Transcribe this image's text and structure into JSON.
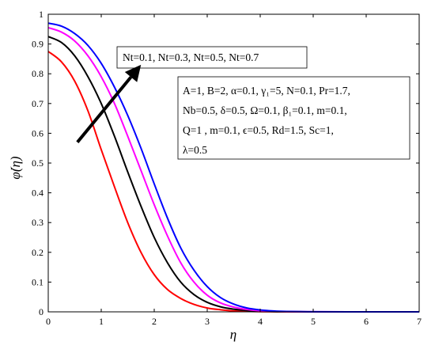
{
  "chart_data": {
    "type": "line",
    "xlabel": "η",
    "ylabel": "φ̇(η)",
    "xlim": [
      0,
      7
    ],
    "ylim": [
      0,
      1
    ],
    "xticks": [
      "0",
      "1",
      "2",
      "3",
      "4",
      "5",
      "6",
      "7"
    ],
    "yticks": [
      "0",
      "0.1",
      "0.2",
      "0.3",
      "0.4",
      "0.5",
      "0.6",
      "0.7",
      "0.8",
      "0.9",
      "1"
    ],
    "grid": false,
    "legend_box": "Nt=0.1, Nt=0.3, Nt=0.5, Nt=0.7",
    "parameter_box": [
      "A=1, B=2, α=0.1, γ₁=5, N=0.1, Pr=1.7,",
      "Nb=0.5, δ=0.5, Ω=0.1, β₁=0.1, m=0.1,",
      "Q=1 , m=0.1, ϵ=0.5, Rd=1.5, Sc=1,",
      "λ=0.5"
    ],
    "arrow": {
      "from": [
        0.55,
        0.57
      ],
      "to": [
        1.75,
        0.83
      ]
    },
    "series": [
      {
        "color": "#ff0000",
        "x": [
          0,
          0.25,
          0.5,
          0.75,
          1.0,
          1.25,
          1.5,
          1.75,
          2.0,
          2.25,
          2.5,
          2.75,
          3.0,
          3.25,
          3.5,
          3.75,
          4.0,
          4.5,
          5.0,
          6.0,
          7.0
        ],
        "y": [
          0.875,
          0.84,
          0.775,
          0.675,
          0.545,
          0.42,
          0.3,
          0.2,
          0.125,
          0.075,
          0.045,
          0.025,
          0.013,
          0.007,
          0.003,
          0.0015,
          0.0008,
          0.0002,
          0.0,
          0.0,
          0.0
        ]
      },
      {
        "color": "#000000",
        "x": [
          0,
          0.25,
          0.5,
          0.75,
          1.0,
          1.25,
          1.5,
          1.75,
          2.0,
          2.25,
          2.5,
          2.75,
          3.0,
          3.25,
          3.5,
          3.75,
          4.0,
          4.25,
          4.5,
          5.0,
          6.0,
          7.0
        ],
        "y": [
          0.925,
          0.905,
          0.86,
          0.79,
          0.7,
          0.59,
          0.47,
          0.355,
          0.25,
          0.165,
          0.1,
          0.058,
          0.032,
          0.017,
          0.009,
          0.0045,
          0.0022,
          0.001,
          0.0005,
          0.0001,
          0.0,
          0.0
        ]
      },
      {
        "color": "#ff00ff",
        "x": [
          0,
          0.25,
          0.5,
          0.75,
          1.0,
          1.25,
          1.5,
          1.75,
          2.0,
          2.25,
          2.5,
          2.75,
          3.0,
          3.25,
          3.5,
          3.75,
          4.0,
          4.25,
          4.5,
          5.0,
          6.0,
          7.0
        ],
        "y": [
          0.955,
          0.94,
          0.91,
          0.86,
          0.79,
          0.7,
          0.59,
          0.475,
          0.36,
          0.255,
          0.165,
          0.1,
          0.056,
          0.03,
          0.016,
          0.008,
          0.0038,
          0.0018,
          0.0008,
          0.0002,
          0.0,
          0.0
        ]
      },
      {
        "color": "#0000ff",
        "x": [
          0,
          0.25,
          0.5,
          0.75,
          1.0,
          1.25,
          1.5,
          1.75,
          2.0,
          2.25,
          2.5,
          2.75,
          3.0,
          3.25,
          3.5,
          3.75,
          4.0,
          4.25,
          4.5,
          5.0,
          6.0,
          7.0
        ],
        "y": [
          0.97,
          0.96,
          0.935,
          0.895,
          0.835,
          0.755,
          0.66,
          0.55,
          0.43,
          0.315,
          0.215,
          0.14,
          0.085,
          0.048,
          0.026,
          0.013,
          0.0065,
          0.003,
          0.0014,
          0.0003,
          0.0,
          0.0
        ]
      }
    ]
  }
}
